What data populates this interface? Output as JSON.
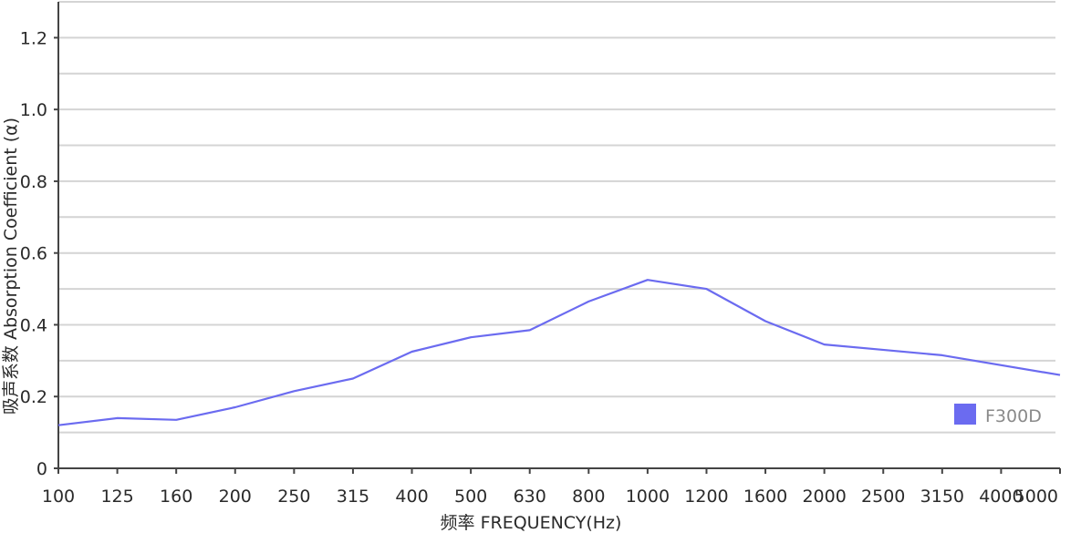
{
  "chart_data": {
    "type": "line",
    "title": "",
    "xlabel": "频率  FREQUENCY(Hz)",
    "ylabel": "吸声系数 Absorption Coefficient (α)",
    "categories": [
      "100",
      "125",
      "160",
      "200",
      "250",
      "315",
      "400",
      "500",
      "630",
      "800",
      "1000",
      "1200",
      "1600",
      "2000",
      "2500",
      "3150",
      "4000",
      "5000"
    ],
    "yticks": [
      "0",
      "0.2",
      "0.4",
      "0.6",
      "0.8",
      "1.0",
      "1.2"
    ],
    "ylim": [
      0,
      1.3
    ],
    "grid": true,
    "legend_position": "bottom-right",
    "series": [
      {
        "name": "F300D",
        "color": "#6b6bf0",
        "points": [
          {
            "x": "100",
            "y": 0.12
          },
          {
            "x": "125",
            "y": 0.14
          },
          {
            "x": "160",
            "y": 0.135
          },
          {
            "x": "200",
            "y": 0.17
          },
          {
            "x": "250",
            "y": 0.215
          },
          {
            "x": "315",
            "y": 0.25
          },
          {
            "x": "400",
            "y": 0.325
          },
          {
            "x": "500",
            "y": 0.365
          },
          {
            "x": "630",
            "y": 0.385
          },
          {
            "x": "800",
            "y": 0.465
          },
          {
            "x": "1000",
            "y": 0.525
          },
          {
            "x": "1200",
            "y": 0.5
          },
          {
            "x": "1600",
            "y": 0.41
          },
          {
            "x": "2000",
            "y": 0.345
          },
          {
            "x": "3150",
            "y": 0.315
          },
          {
            "x": "5000",
            "y": 0.26
          }
        ]
      }
    ]
  }
}
